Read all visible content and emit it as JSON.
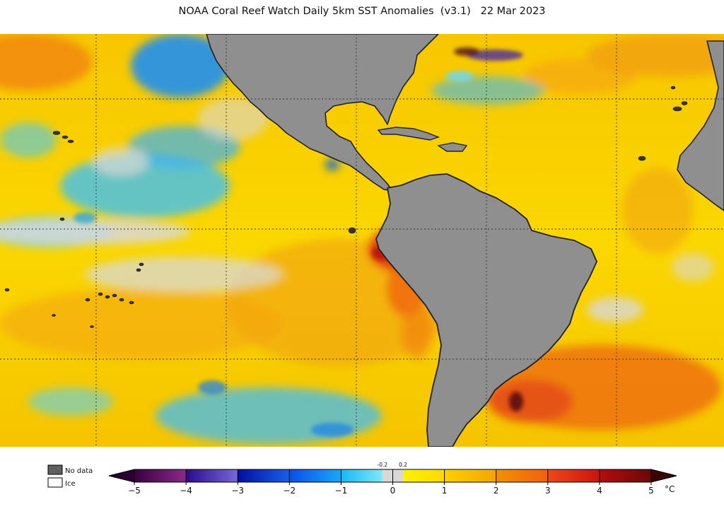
{
  "title": "NOAA Coral Reef Watch Daily 5km SST Anomalies  (v3.1)   22 Mar 2023",
  "map": {
    "land_color": "#8f8f8f",
    "coast_color": "#222222",
    "no_data_color": "#d8d8d8",
    "grid_style": "dotted"
  },
  "legend": {
    "no_data_label": "No data",
    "ice_label": "Ice",
    "no_data_swatch": "#606060",
    "ice_swatch": "#ffffff",
    "unit": "°C",
    "ticks": [
      {
        "value": -5,
        "label": "−5"
      },
      {
        "value": -4,
        "label": "−4"
      },
      {
        "value": -3,
        "label": "−3"
      },
      {
        "value": -2,
        "label": "−2"
      },
      {
        "value": -1,
        "label": "−1"
      },
      {
        "value": 0,
        "label": "0"
      },
      {
        "value": 1,
        "label": "1"
      },
      {
        "value": 2,
        "label": "2"
      },
      {
        "value": 3,
        "label": "3"
      },
      {
        "value": 4,
        "label": "4"
      },
      {
        "value": 5,
        "label": "5"
      }
    ],
    "small_ticks": [
      {
        "value": -0.2,
        "label": "-0.2"
      },
      {
        "value": 0.2,
        "label": "0.2"
      }
    ],
    "segments": [
      {
        "from": -5,
        "to": -4,
        "c1": "#3a0040",
        "c2": "#8a2a8a"
      },
      {
        "from": -4,
        "to": -3,
        "c1": "#2a0a90",
        "c2": "#7868d8"
      },
      {
        "from": -3,
        "to": -2,
        "c1": "#0010a0",
        "c2": "#1a5ee8"
      },
      {
        "from": -2,
        "to": -1,
        "c1": "#0a4ee8",
        "c2": "#1aa8f8"
      },
      {
        "from": -1,
        "to": -0.2,
        "c1": "#18b8f4",
        "c2": "#80e8f8"
      },
      {
        "from": -0.2,
        "to": 0.2,
        "c1": "#d8d8d8",
        "c2": "#d8d8d8"
      },
      {
        "from": 0.2,
        "to": 1,
        "c1": "#fff200",
        "c2": "#ffd800"
      },
      {
        "from": 1,
        "to": 2,
        "c1": "#ffd000",
        "c2": "#f5a400"
      },
      {
        "from": 2,
        "to": 3,
        "c1": "#f59000",
        "c2": "#f06010"
      },
      {
        "from": 3,
        "to": 4,
        "c1": "#f04818",
        "c2": "#c81410"
      },
      {
        "from": 4,
        "to": 5,
        "c1": "#b40e0e",
        "c2": "#6a0808"
      }
    ],
    "low_arrow_color": "#2a0030",
    "high_arrow_color": "#3a0404"
  }
}
